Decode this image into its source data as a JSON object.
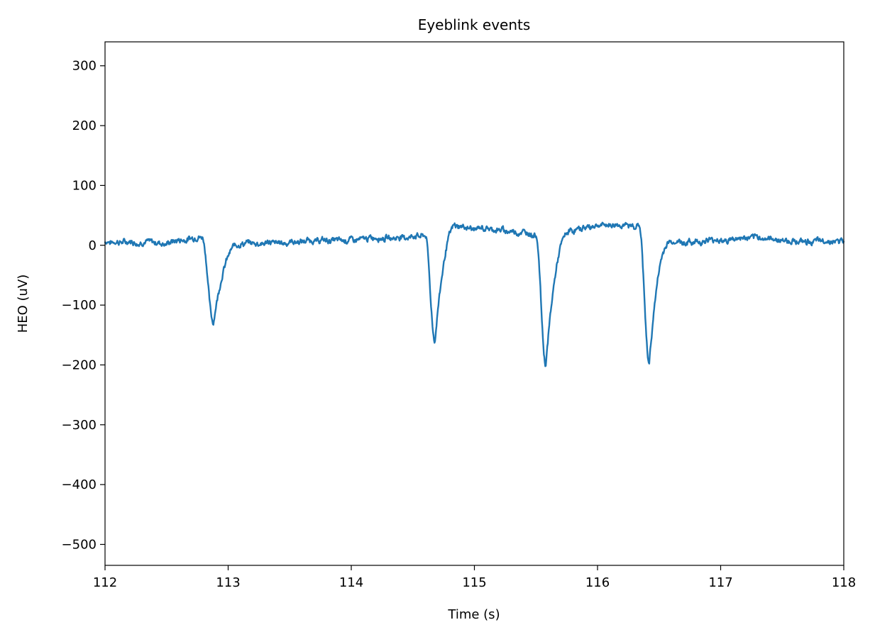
{
  "chart_data": {
    "type": "line",
    "title": "Eyeblink events",
    "xlabel": "Time (s)",
    "ylabel": "HEO (uV)",
    "xlim": [
      112,
      118
    ],
    "ylim": [
      -535,
      340
    ],
    "xticks": [
      112,
      113,
      114,
      115,
      116,
      117,
      118
    ],
    "xtick_labels": [
      "112",
      "113",
      "114",
      "115",
      "116",
      "117",
      "118"
    ],
    "yticks": [
      300,
      200,
      100,
      0,
      -100,
      -200,
      -300,
      -400,
      -500
    ],
    "ytick_labels": [
      "300",
      "200",
      "100",
      "0",
      "−100",
      "−200",
      "−300",
      "−400",
      "−500"
    ],
    "grid": false,
    "legend": "none",
    "series": [
      {
        "color": "#1f77b4",
        "baseline": [
          [
            112.0,
            6
          ],
          [
            112.5,
            4
          ],
          [
            112.75,
            14
          ],
          [
            113.1,
            3
          ],
          [
            113.5,
            5
          ],
          [
            114.0,
            10
          ],
          [
            114.5,
            15
          ],
          [
            114.62,
            18
          ],
          [
            114.8,
            34
          ],
          [
            115.0,
            28
          ],
          [
            115.3,
            24
          ],
          [
            115.5,
            18
          ],
          [
            115.75,
            22
          ],
          [
            115.9,
            30
          ],
          [
            116.1,
            33
          ],
          [
            116.33,
            32
          ],
          [
            116.6,
            4
          ],
          [
            116.8,
            6
          ],
          [
            117.0,
            9
          ],
          [
            117.3,
            12
          ],
          [
            117.6,
            7
          ],
          [
            118.0,
            6
          ]
        ],
        "events": [
          {
            "t": 112.88,
            "peak": -130,
            "dip_start": 112.79,
            "recover_end": 113.1
          },
          {
            "t": 114.68,
            "peak": -160,
            "dip_start": 114.6,
            "recover_end": 114.85
          },
          {
            "t": 115.58,
            "peak": -198,
            "dip_start": 115.5,
            "recover_end": 115.77
          },
          {
            "t": 116.42,
            "peak": -198,
            "dip_start": 116.34,
            "recover_end": 116.6
          }
        ]
      }
    ]
  }
}
